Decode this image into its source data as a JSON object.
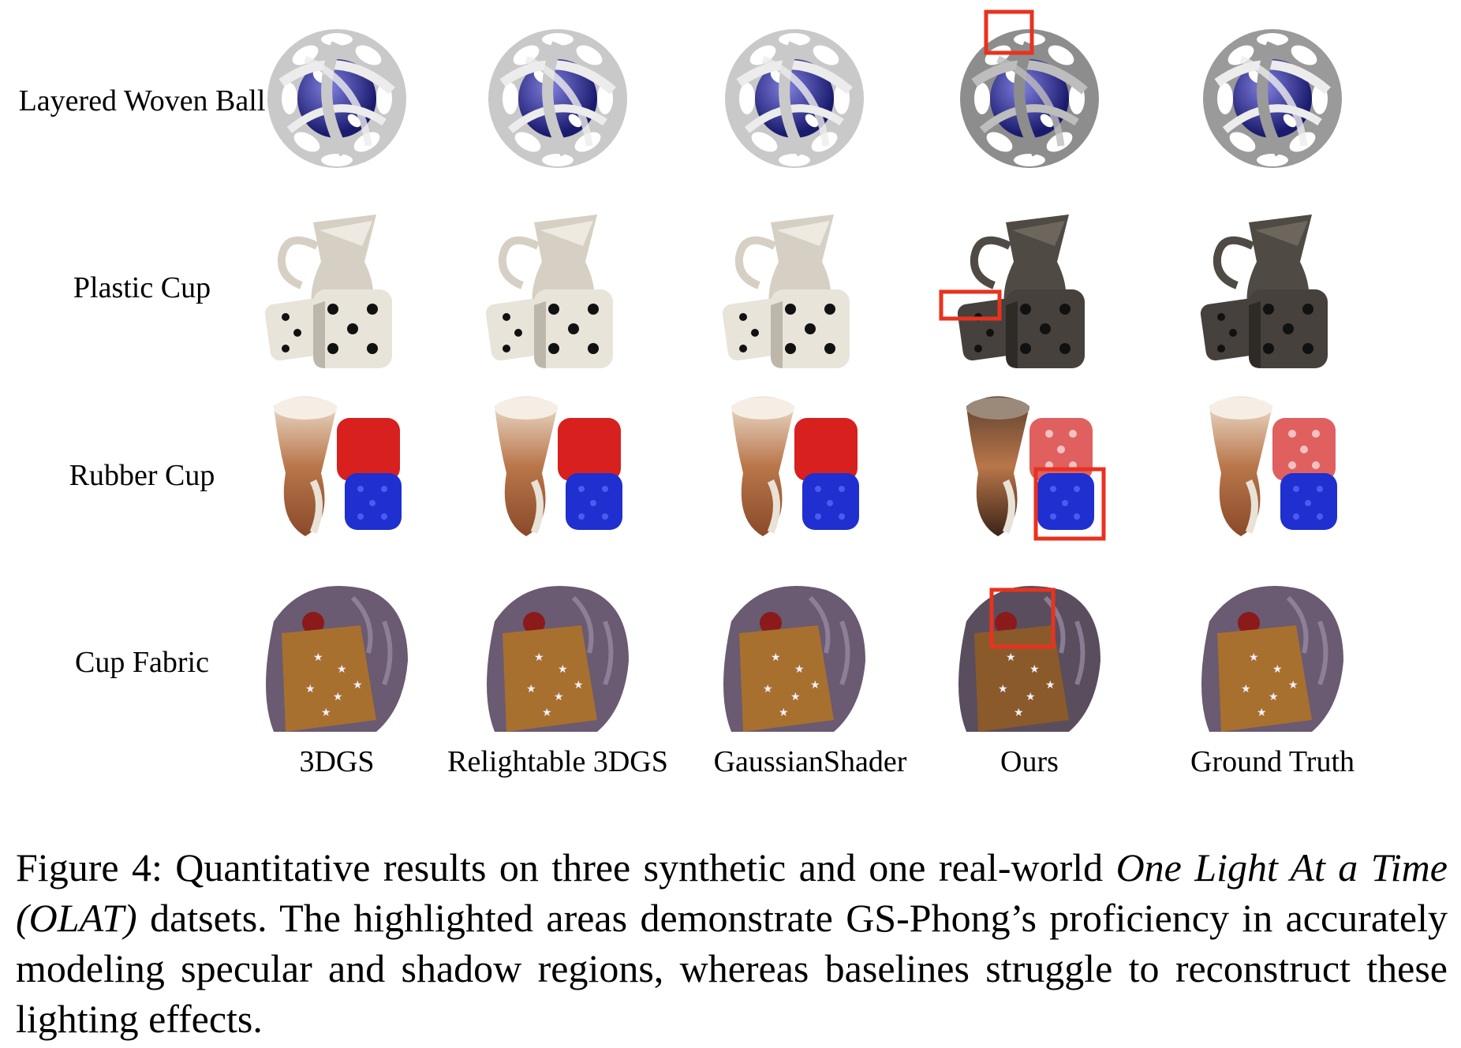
{
  "figure": {
    "rows": [
      {
        "key": "ball",
        "label": "Layered Woven Ball"
      },
      {
        "key": "plastic",
        "label": "Plastic Cup"
      },
      {
        "key": "rubber",
        "label": "Rubber Cup"
      },
      {
        "key": "fabric",
        "label": "Cup Fabric"
      }
    ],
    "columns": [
      "3DGS",
      "Relightable 3DGS",
      "GaussianShader",
      "Ours",
      "Ground Truth"
    ],
    "highlight_color": "#e8321f"
  },
  "caption": {
    "prefix": "Figure 4: Quantitative results on three synthetic and one real-world ",
    "italic": "One Light At a Time (OLAT)",
    "suffix": " datsets. The highlighted areas demonstrate GS-Phong’s proficiency in accurately modeling specular and shadow regions, whereas baselines struggle to reconstruct these lighting effects."
  }
}
